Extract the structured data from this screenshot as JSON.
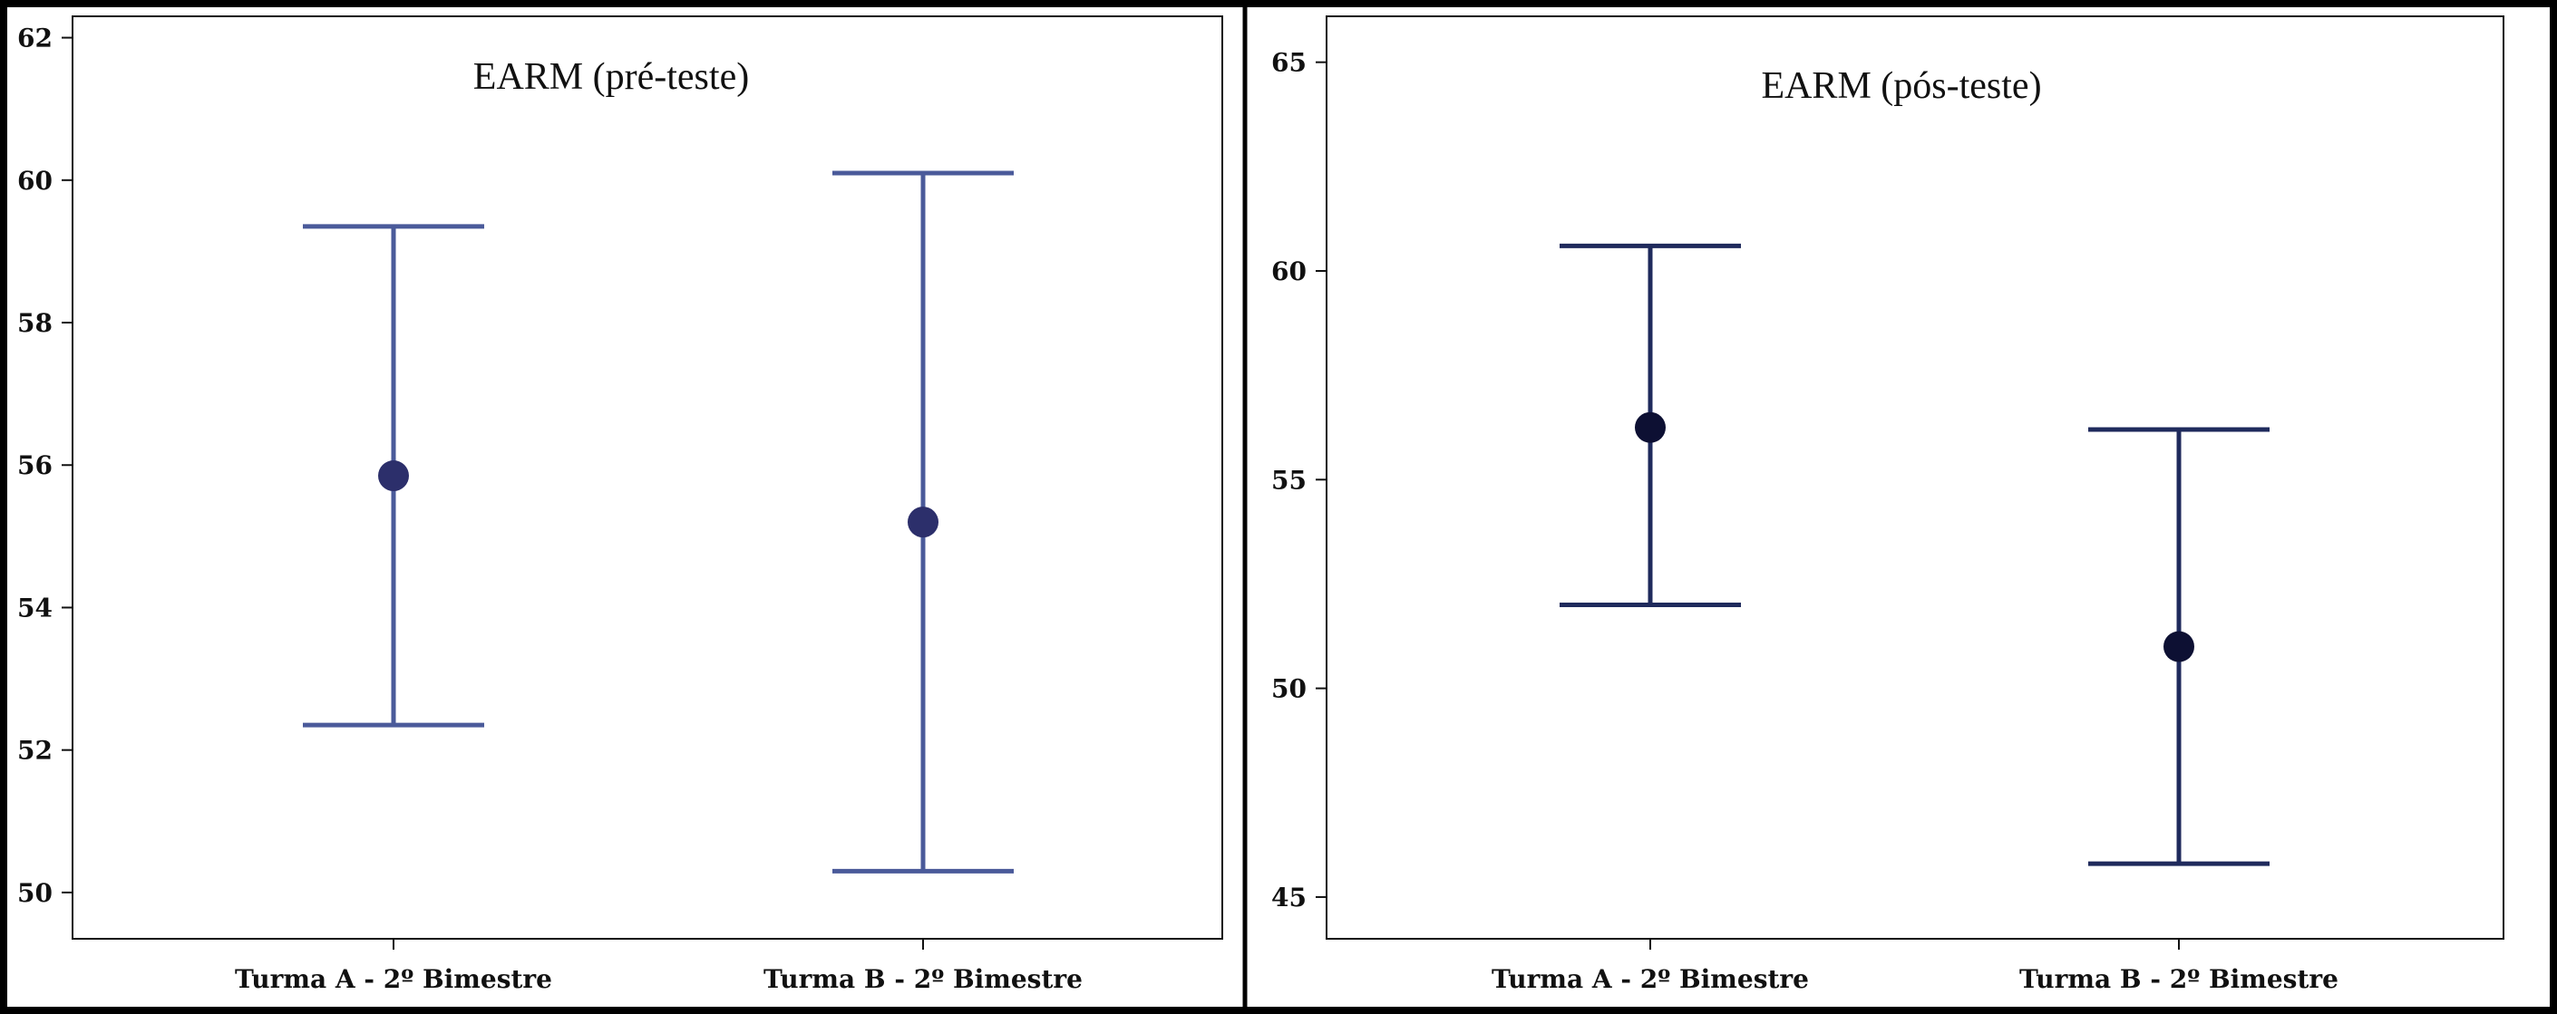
{
  "chart_data": [
    {
      "type": "errorbar",
      "title": "EARM (pré-teste)",
      "categories": [
        "Turma A - 2º Bimestre",
        "Turma B - 2º Bimestre"
      ],
      "series": [
        {
          "name": "mean",
          "values": [
            55.85,
            55.2
          ]
        },
        {
          "name": "lower",
          "values": [
            52.35,
            50.3
          ]
        },
        {
          "name": "upper",
          "values": [
            59.35,
            60.1
          ]
        }
      ],
      "yticks": [
        50,
        52,
        54,
        56,
        58,
        60,
        62
      ],
      "ylim": [
        49.35,
        62.3
      ],
      "xlabel": "",
      "ylabel": "",
      "color": "#4a5a9a",
      "marker_color": "#2c2f6b"
    },
    {
      "type": "errorbar",
      "title": "EARM (pós-teste)",
      "categories": [
        "Turma A - 2º Bimestre",
        "Turma B - 2º Bimestre"
      ],
      "series": [
        {
          "name": "mean",
          "values": [
            56.25,
            51.0
          ]
        },
        {
          "name": "lower",
          "values": [
            52.0,
            45.8
          ]
        },
        {
          "name": "upper",
          "values": [
            60.6,
            56.2
          ]
        }
      ],
      "yticks": [
        45,
        50,
        55,
        60,
        65
      ],
      "ylim": [
        44.0,
        66.1
      ],
      "xlabel": "",
      "ylabel": "",
      "color": "#1f2a5c",
      "marker_color": "#0d1033"
    }
  ]
}
